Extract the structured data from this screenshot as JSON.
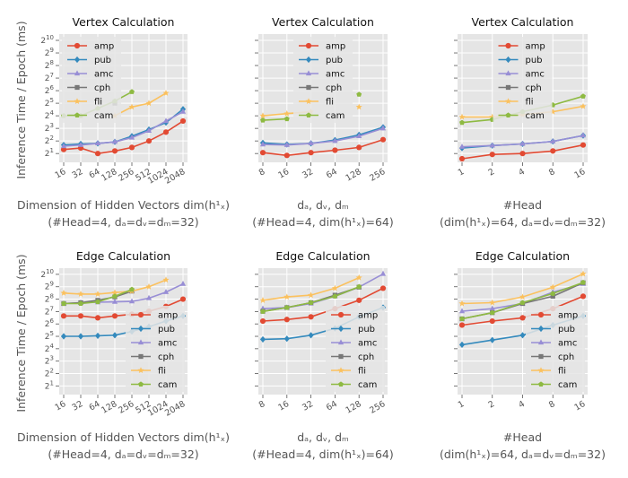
{
  "figure": {
    "ylabel": "Inference Time / Epoch (ms)",
    "series_names": [
      "amp",
      "pub",
      "amc",
      "cph",
      "fli",
      "cam"
    ],
    "series_colors": [
      "#e24a33",
      "#348abd",
      "#988ed5",
      "#777777",
      "#fbc15e",
      "#8eba42"
    ],
    "series_markers": [
      "circle",
      "diamond",
      "triangle",
      "square",
      "star",
      "pentagon"
    ]
  },
  "chart_data": [
    {
      "type": "line",
      "title": "Vertex Calculation",
      "xlabel": "Dimension of Hidden Vectors dim(h¹ₓ)",
      "xlabel2": "(#Head=4, dₐ=dᵥ=dₘ=32)",
      "x": [
        "16",
        "32",
        "64",
        "128",
        "256",
        "512",
        "1024",
        "2048"
      ],
      "y_axis": "log2",
      "ylim_exp": [
        0.3,
        10.5
      ],
      "yticks": [
        1,
        2,
        3,
        4,
        5,
        6,
        7,
        8,
        9,
        10
      ],
      "legend": "top-left",
      "series": [
        {
          "name": "amp",
          "values": [
            2.5,
            2.7,
            2.0,
            2.3,
            2.8,
            4.0,
            6.5,
            12.0
          ]
        },
        {
          "name": "pub",
          "values": [
            3.2,
            3.4,
            3.5,
            3.8,
            5.2,
            7.5,
            11.0,
            23.0
          ]
        },
        {
          "name": "amc",
          "values": [
            3.0,
            3.2,
            3.5,
            3.8,
            4.8,
            7.0,
            12.0,
            20.0
          ]
        },
        {
          "name": "cph",
          "values": [
            null,
            null,
            null,
            32.0,
            null,
            null,
            null,
            null
          ]
        },
        {
          "name": "fli",
          "values": [
            null,
            null,
            null,
            16.0,
            26.0,
            32.0,
            56.0,
            null
          ]
        },
        {
          "name": "cam",
          "values": [
            16.0,
            16.0,
            24.0,
            36.0,
            60.0,
            null,
            null,
            null
          ]
        }
      ]
    },
    {
      "type": "line",
      "title": "Vertex Calculation",
      "xlabel": "dₐ, dᵥ, dₘ",
      "xlabel2": "(#Head=4, dim(h¹ₓ)=64)",
      "x": [
        "8",
        "16",
        "32",
        "64",
        "128",
        "256"
      ],
      "y_axis": "log2",
      "ylim_exp": [
        0.3,
        10.5
      ],
      "legend": "top-center",
      "series": [
        {
          "name": "amp",
          "values": [
            2.1,
            1.8,
            2.1,
            2.4,
            2.8,
            4.3
          ]
        },
        {
          "name": "pub",
          "values": [
            3.6,
            3.3,
            3.5,
            4.2,
            5.6,
            8.5
          ]
        },
        {
          "name": "amc",
          "values": [
            3.3,
            3.2,
            3.5,
            4.0,
            5.2,
            8.0
          ]
        },
        {
          "name": "cph",
          "values": [
            null,
            null,
            null,
            null,
            null,
            null
          ]
        },
        {
          "name": "fli",
          "values": [
            16.0,
            18.0,
            20.0,
            null,
            26.0,
            null
          ]
        },
        {
          "name": "cam",
          "values": [
            12.5,
            13.5,
            null,
            null,
            52.0,
            null
          ]
        }
      ]
    },
    {
      "type": "line",
      "title": "Vertex Calculation",
      "xlabel": "#Head",
      "xlabel2": "(dim(h¹ₓ)=64, dₐ=dᵥ=dₘ=32)",
      "x": [
        "1",
        "2",
        "4",
        "8",
        "16"
      ],
      "y_axis": "log2",
      "ylim_exp": [
        0.3,
        10.5
      ],
      "legend": "top-center",
      "series": [
        {
          "name": "amp",
          "values": [
            1.5,
            1.9,
            2.0,
            2.3,
            3.2
          ]
        },
        {
          "name": "pub",
          "values": [
            2.7,
            3.1,
            3.4,
            3.9,
            5.4
          ]
        },
        {
          "name": "amc",
          "values": [
            2.9,
            3.1,
            3.4,
            3.9,
            5.4
          ]
        },
        {
          "name": "cph",
          "values": [
            null,
            null,
            null,
            null,
            null
          ]
        },
        {
          "name": "fli",
          "values": [
            15.0,
            15.0,
            17.0,
            20.0,
            27.0
          ]
        },
        {
          "name": "cam",
          "values": [
            11.0,
            13.0,
            20.0,
            29.0,
            47.0
          ]
        }
      ]
    },
    {
      "type": "line",
      "title": "Edge Calculation",
      "xlabel": "Dimension of Hidden Vectors dim(h¹ₓ)",
      "xlabel2": "(#Head=4, dₐ=dᵥ=dₘ=32)",
      "x": [
        "16",
        "32",
        "64",
        "128",
        "256",
        "512",
        "1024",
        "2048"
      ],
      "y_axis": "log2",
      "ylim_exp": [
        0.3,
        10.5
      ],
      "yticks": [
        1,
        2,
        3,
        4,
        5,
        6,
        7,
        8,
        9,
        10
      ],
      "legend": "lower-right",
      "series": [
        {
          "name": "amp",
          "values": [
            100,
            100,
            90,
            100,
            110,
            130,
            170,
            256
          ]
        },
        {
          "name": "pub",
          "values": [
            32,
            32,
            33,
            34,
            42,
            55,
            75,
            100
          ]
        },
        {
          "name": "amc",
          "values": [
            200,
            210,
            215,
            220,
            225,
            270,
            380,
            600
          ]
        },
        {
          "name": "cph",
          "values": [
            200,
            210,
            240,
            290,
            400,
            null,
            null,
            null
          ]
        },
        {
          "name": "fli",
          "values": [
            360,
            340,
            340,
            370,
            400,
            512,
            750,
            null
          ]
        },
        {
          "name": "cam",
          "values": [
            200,
            200,
            220,
            300,
            440,
            null,
            null,
            null
          ]
        }
      ]
    },
    {
      "type": "line",
      "title": "Edge Calculation",
      "xlabel": "dₐ, dᵥ, dₘ",
      "xlabel2": "(#Head=4, dim(h¹ₓ)=64)",
      "x": [
        "8",
        "16",
        "32",
        "64",
        "128",
        "256"
      ],
      "y_axis": "log2",
      "ylim_exp": [
        0.3,
        10.5
      ],
      "legend": "lower-right",
      "series": [
        {
          "name": "amp",
          "values": [
            75,
            82,
            95,
            150,
            240,
            470
          ]
        },
        {
          "name": "pub",
          "values": [
            27,
            28,
            34,
            50,
            95,
            160
          ]
        },
        {
          "name": "amc",
          "values": [
            150,
            160,
            200,
            300,
            500,
            1050
          ]
        },
        {
          "name": "cph",
          "values": [
            130,
            160,
            210,
            320,
            500,
            null
          ]
        },
        {
          "name": "fli",
          "values": [
            240,
            290,
            320,
            470,
            850,
            null
          ]
        },
        {
          "name": "cam",
          "values": [
            128,
            160,
            210,
            300,
            512,
            null
          ]
        }
      ]
    },
    {
      "type": "line",
      "title": "Edge Calculation",
      "xlabel": "#Head",
      "xlabel2": "(dim(h¹ₓ)=64, dₐ=dᵥ=dₘ=32)",
      "x": [
        "1",
        "2",
        "4",
        "8",
        "16"
      ],
      "y_axis": "log2",
      "ylim_exp": [
        0.3,
        10.5
      ],
      "legend": "lower-right",
      "series": [
        {
          "name": "amp",
          "values": [
            60,
            75,
            90,
            150,
            300
          ]
        },
        {
          "name": "pub",
          "values": [
            20,
            26,
            34,
            60,
            100
          ]
        },
        {
          "name": "amc",
          "values": [
            130,
            150,
            200,
            380,
            600
          ]
        },
        {
          "name": "cph",
          "values": [
            85,
            120,
            200,
            300,
            640
          ]
        },
        {
          "name": "fli",
          "values": [
            200,
            210,
            290,
            500,
            1050
          ]
        },
        {
          "name": "cam",
          "values": [
            85,
            120,
            210,
            350,
            650
          ]
        }
      ]
    }
  ]
}
